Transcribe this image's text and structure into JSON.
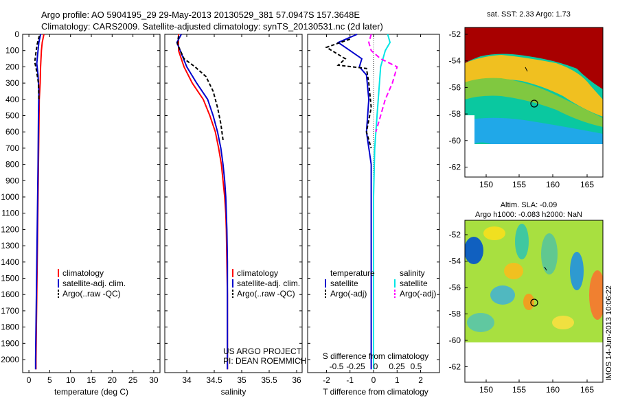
{
  "header": {
    "line1": "Argo profile: AO 5904195_29 29-May-2013 20130529_381 57.0947S 157.3648E",
    "line2": "Climatology: CARS2009. Satellite-adjusted climatology: synTS_20130531.nc (2d later)"
  },
  "colors": {
    "climatology": "#ff0000",
    "satellite": "#0000cc",
    "argo": "#000000",
    "salinity_sat": "#00e5e5",
    "salinity_argo": "#ff00ff"
  },
  "chart_data": [
    {
      "type": "line",
      "id": "temperature",
      "xlabel": "temperature (deg C)",
      "xticks": [
        0,
        5,
        10,
        15,
        20,
        25,
        30
      ],
      "xlim": [
        -1.5,
        31.5
      ],
      "ylim": [
        0,
        2080
      ],
      "yticks": [
        0,
        100,
        200,
        300,
        400,
        500,
        600,
        700,
        800,
        900,
        1000,
        1100,
        1200,
        1300,
        1400,
        1500,
        1600,
        1700,
        1800,
        1900,
        2000
      ],
      "legend": [
        "climatology",
        "satellite-adj. clim.",
        "Argo(..raw -QC)"
      ],
      "series": [
        {
          "name": "climatology",
          "color": "#ff0000",
          "dash": "",
          "points": [
            [
              3.6,
              0
            ],
            [
              3.2,
              50
            ],
            [
              3.0,
              100
            ],
            [
              2.9,
              150
            ],
            [
              2.8,
              200
            ],
            [
              2.7,
              300
            ],
            [
              2.5,
              400
            ],
            [
              2.4,
              600
            ],
            [
              2.3,
              800
            ],
            [
              2.2,
              1000
            ],
            [
              2.1,
              1200
            ],
            [
              2.0,
              1400
            ],
            [
              1.9,
              1600
            ],
            [
              1.8,
              1800
            ],
            [
              1.7,
              2000
            ],
            [
              1.7,
              2060
            ]
          ]
        },
        {
          "name": "satellite-adj. clim.",
          "color": "#0000cc",
          "dash": "",
          "points": [
            [
              2.8,
              0
            ],
            [
              2.4,
              50
            ],
            [
              2.2,
              100
            ],
            [
              2.0,
              150
            ],
            [
              1.9,
              180
            ],
            [
              2.2,
              250
            ],
            [
              2.4,
              350
            ],
            [
              2.3,
              500
            ],
            [
              2.2,
              800
            ],
            [
              2.1,
              1000
            ],
            [
              2.0,
              1200
            ],
            [
              1.9,
              1400
            ],
            [
              1.8,
              1600
            ],
            [
              1.7,
              1800
            ],
            [
              1.6,
              2000
            ],
            [
              1.6,
              2060
            ]
          ]
        },
        {
          "name": "Argo(..raw -QC)",
          "color": "#000000",
          "dash": "5,3",
          "points": [
            [
              2.5,
              10
            ],
            [
              2.0,
              60
            ],
            [
              1.7,
              110
            ],
            [
              1.4,
              170
            ],
            [
              1.8,
              220
            ],
            [
              2.3,
              300
            ],
            [
              2.4,
              400
            ]
          ]
        }
      ]
    },
    {
      "type": "line",
      "id": "salinity",
      "xlabel": "salinity",
      "xticks": [
        34,
        34.5,
        35,
        35.5,
        36
      ],
      "xlim": [
        33.6,
        36.1
      ],
      "ylim": [
        0,
        2080
      ],
      "legend": [
        "climatology",
        "satellite-adj. clim.",
        "Argo(..raw -QC)"
      ],
      "annotation": [
        "US ARGO PROJECT",
        "PI: DEAN ROEMMICH"
      ],
      "series": [
        {
          "name": "climatology",
          "color": "#ff0000",
          "dash": "",
          "points": [
            [
              33.85,
              0
            ],
            [
              33.85,
              100
            ],
            [
              33.95,
              200
            ],
            [
              34.1,
              300
            ],
            [
              34.3,
              400
            ],
            [
              34.42,
              500
            ],
            [
              34.52,
              600
            ],
            [
              34.58,
              700
            ],
            [
              34.63,
              800
            ],
            [
              34.66,
              900
            ],
            [
              34.69,
              1000
            ],
            [
              34.71,
              1100
            ],
            [
              34.72,
              1200
            ],
            [
              34.73,
              1400
            ],
            [
              34.74,
              1600
            ],
            [
              34.74,
              1800
            ],
            [
              34.74,
              2060
            ]
          ]
        },
        {
          "name": "satellite-adj. clim.",
          "color": "#0000cc",
          "dash": "",
          "points": [
            [
              33.9,
              0
            ],
            [
              33.82,
              50
            ],
            [
              33.88,
              100
            ],
            [
              34.0,
              200
            ],
            [
              34.18,
              300
            ],
            [
              34.38,
              400
            ],
            [
              34.48,
              500
            ],
            [
              34.56,
              600
            ],
            [
              34.62,
              700
            ],
            [
              34.66,
              800
            ],
            [
              34.69,
              900
            ],
            [
              34.71,
              1000
            ],
            [
              34.72,
              1100
            ],
            [
              34.73,
              1200
            ],
            [
              34.74,
              1400
            ],
            [
              34.74,
              2060
            ]
          ]
        },
        {
          "name": "Argo(..raw -QC)",
          "color": "#000000",
          "dash": "5,3",
          "points": [
            [
              33.85,
              10
            ],
            [
              33.83,
              60
            ],
            [
              33.95,
              150
            ],
            [
              34.15,
              200
            ],
            [
              34.35,
              260
            ],
            [
              34.48,
              350
            ],
            [
              34.56,
              450
            ],
            [
              34.62,
              550
            ],
            [
              34.66,
              650
            ]
          ]
        }
      ]
    },
    {
      "type": "line",
      "id": "difference",
      "xlabel": "T difference from climatology",
      "xlabel2": "S difference from climatology",
      "xticks": [
        -2,
        -1,
        0,
        1,
        2
      ],
      "sticks": [
        "-0.5",
        "-0.25",
        "0",
        "0.25",
        "0.5"
      ],
      "xlim": [
        -2.8,
        2.8
      ],
      "ylim": [
        0,
        2080
      ],
      "legend": [
        "temperature",
        "satellite",
        "Argo(-adj)",
        "salinity",
        "satellite",
        "Argo(-adj)"
      ],
      "series": [
        {
          "name": "temperature satellite",
          "color": "#0000cc",
          "dash": "",
          "points": [
            [
              -0.7,
              0
            ],
            [
              -1.5,
              50
            ],
            [
              -1.0,
              100
            ],
            [
              -0.5,
              150
            ],
            [
              -0.6,
              200
            ],
            [
              -0.3,
              250
            ],
            [
              -0.2,
              400
            ],
            [
              -0.3,
              600
            ],
            [
              -0.1,
              800
            ],
            [
              -0.1,
              1200
            ],
            [
              -0.1,
              2060
            ]
          ]
        },
        {
          "name": "temperature Argo(-adj)",
          "color": "#000000",
          "dash": "5,3",
          "points": [
            [
              -1.0,
              30
            ],
            [
              -2.0,
              80
            ],
            [
              -1.2,
              150
            ],
            [
              -1.5,
              190
            ],
            [
              -0.3,
              210
            ],
            [
              -0.2,
              300
            ],
            [
              -0.1,
              450
            ],
            [
              -0.3,
              600
            ],
            [
              -0.1,
              700
            ]
          ]
        },
        {
          "name": "salinity satellite",
          "color": "#00e5e5",
          "dash": "",
          "points": [
            [
              0.6,
              0
            ],
            [
              0.7,
              50
            ],
            [
              0.5,
              100
            ],
            [
              0.4,
              150
            ],
            [
              0.3,
              200
            ],
            [
              0.25,
              300
            ],
            [
              0.15,
              500
            ],
            [
              0.05,
              700
            ],
            [
              0.0,
              1000
            ],
            [
              0.0,
              2060
            ]
          ]
        },
        {
          "name": "salinity Argo(-adj)",
          "color": "#ff00ff",
          "dash": "7,4",
          "points": [
            [
              -0.1,
              0
            ],
            [
              -0.2,
              50
            ],
            [
              -0.1,
              100
            ],
            [
              0.3,
              150
            ],
            [
              1.0,
              200
            ],
            [
              0.8,
              300
            ],
            [
              0.5,
              400
            ],
            [
              0.3,
              500
            ],
            [
              0.1,
              600
            ]
          ]
        }
      ]
    }
  ],
  "maps": {
    "sst": {
      "title": "sat. SST: 2.33 Argo: 1.73",
      "xticks": [
        "150",
        "155",
        "160",
        "165"
      ],
      "yticks": [
        "-52",
        "-54",
        "-56",
        "-58",
        "-60",
        "-62"
      ]
    },
    "sla": {
      "title1": "Altim. SLA: -0.09",
      "title2": "Argo h1000: -0.083 h2000: NaN",
      "xticks": [
        "150",
        "155",
        "160",
        "165"
      ],
      "yticks": [
        "-52",
        "-54",
        "-56",
        "-58",
        "-60",
        "-62"
      ]
    }
  },
  "footer": "IMOS 14-Jun-2013 10:06:22"
}
